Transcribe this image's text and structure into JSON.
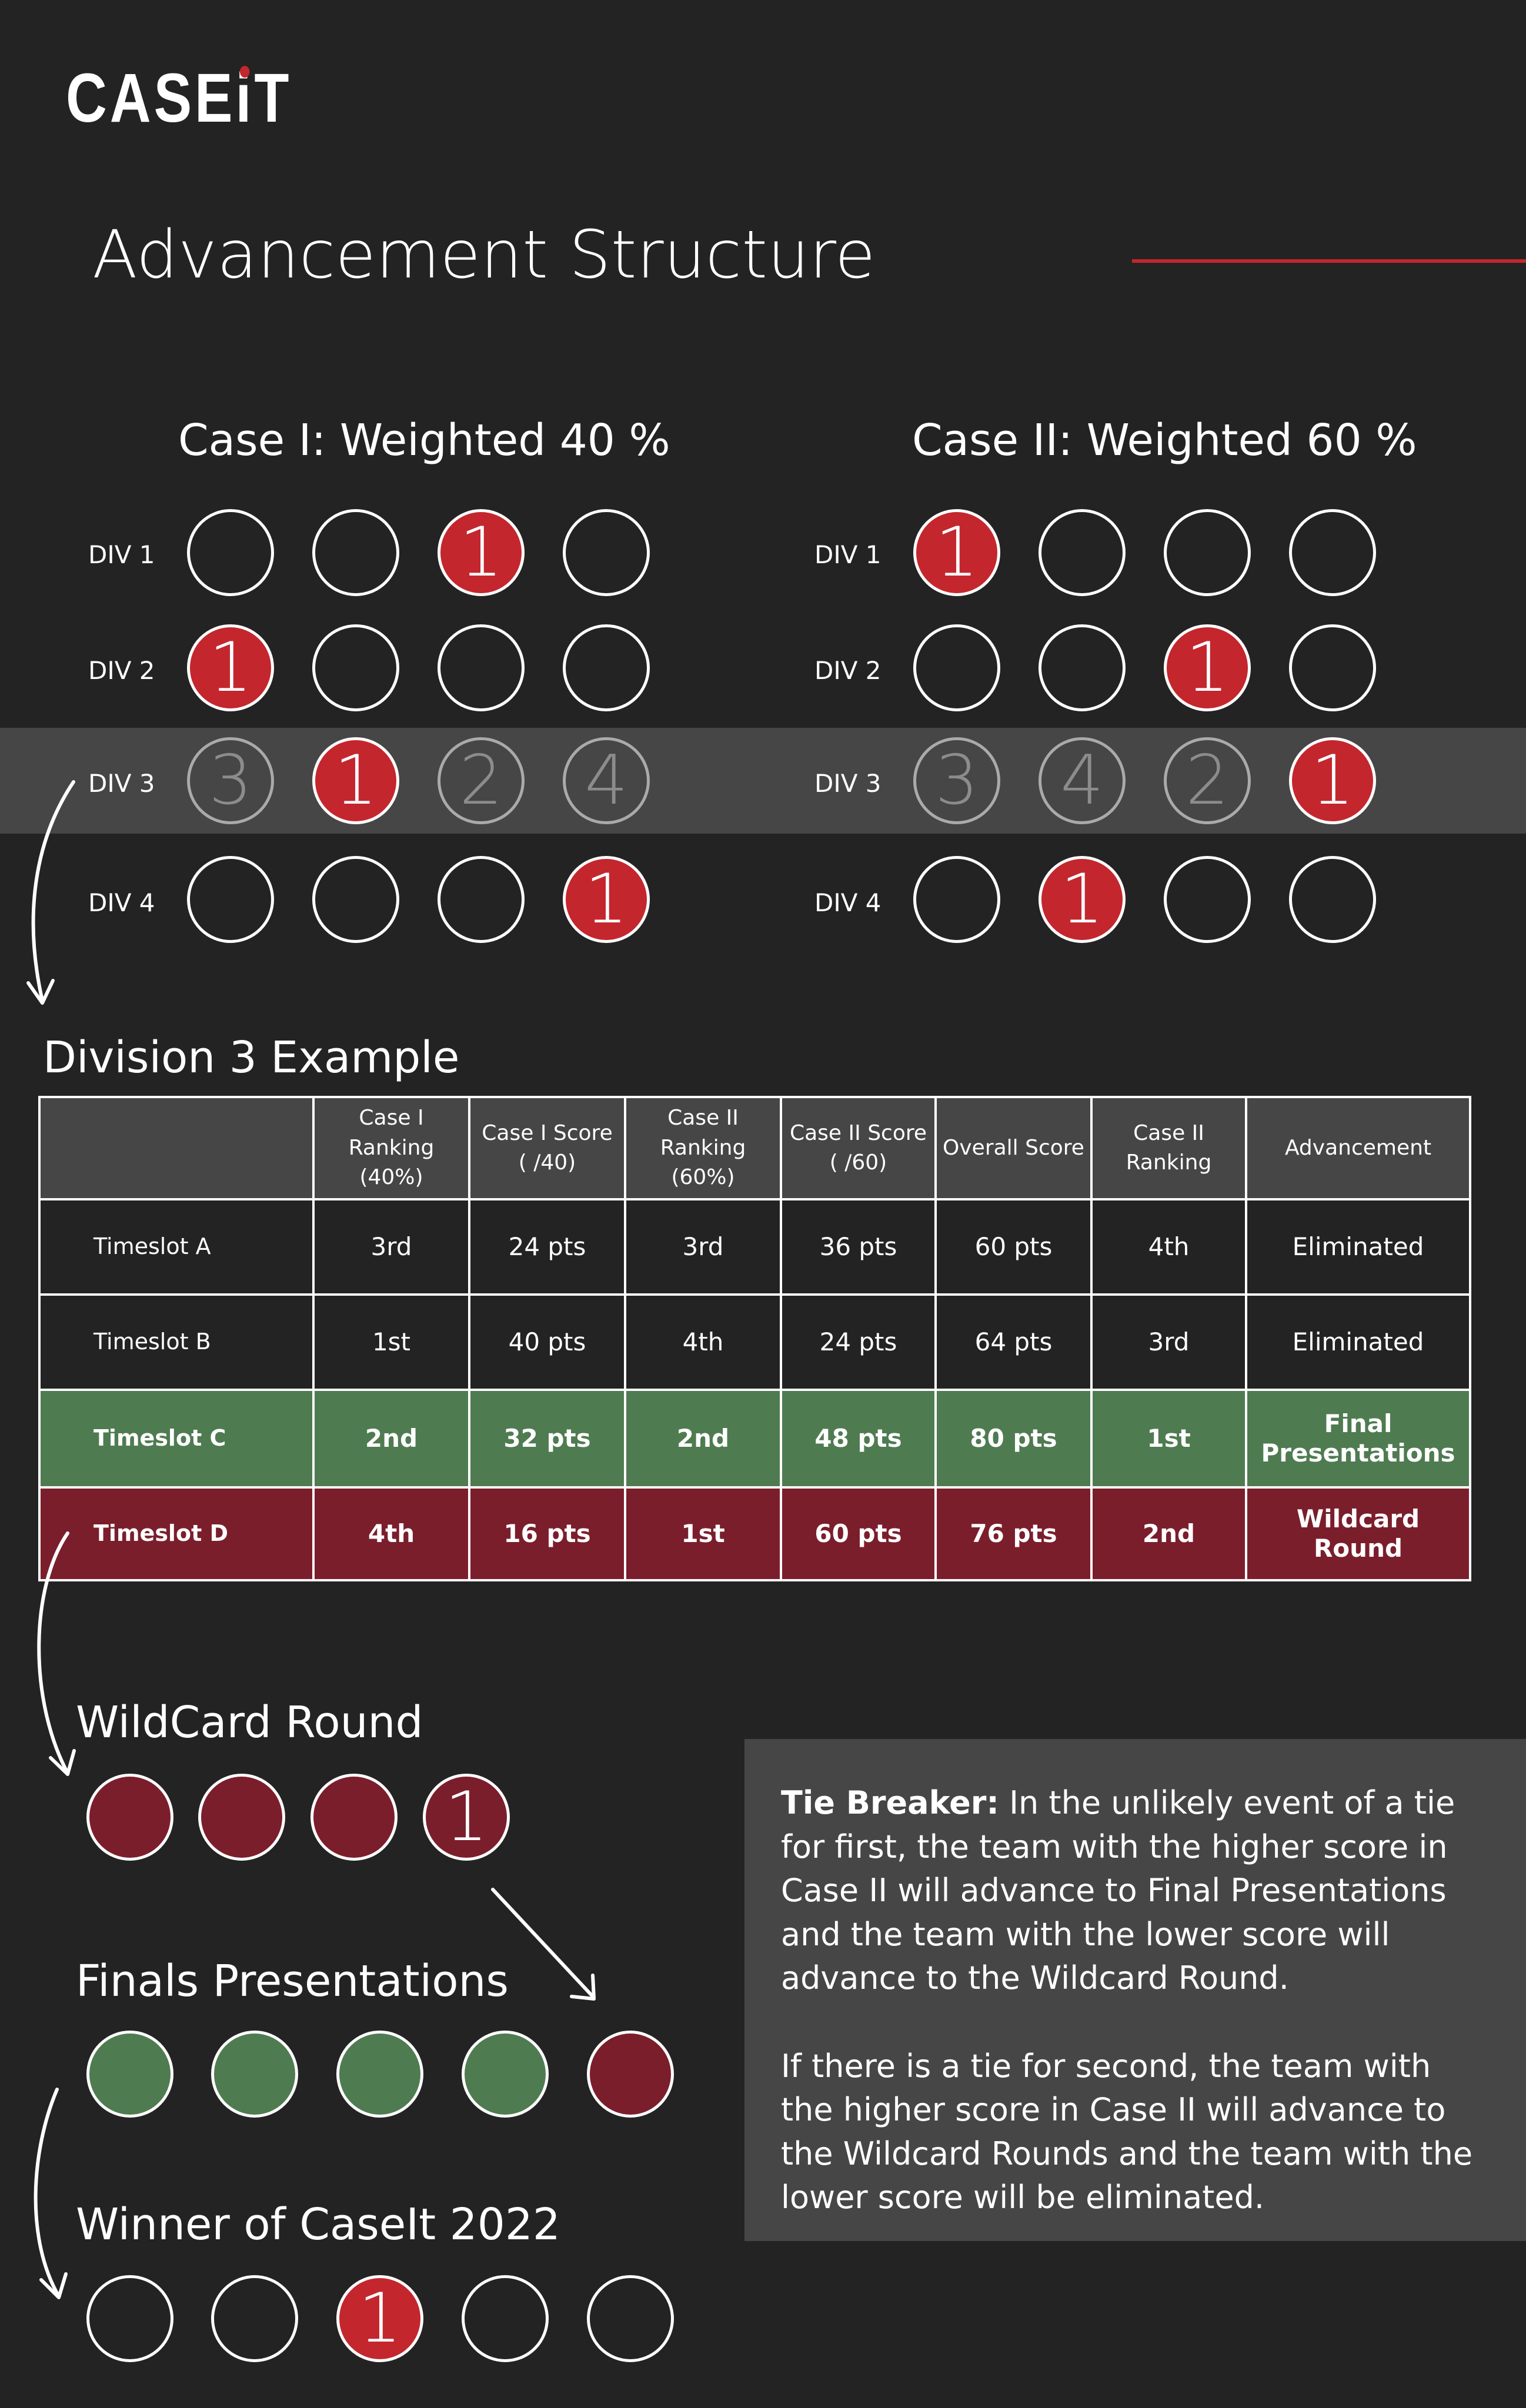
{
  "logo": {
    "text_pre": "CASE",
    "text_i": "i",
    "text_post": "T"
  },
  "title": "Advancement Structure",
  "case1": {
    "heading": "Case I: Weighted 40 %"
  },
  "case2": {
    "heading": "Case II: Weighted 60 %"
  },
  "division_labels": [
    "DIV 1",
    "DIV 2",
    "DIV 3",
    "DIV 4"
  ],
  "case1_grid": [
    [
      "",
      "",
      "1",
      ""
    ],
    [
      "1",
      "",
      "",
      ""
    ],
    [
      "3",
      "1",
      "2",
      "4"
    ],
    [
      "",
      "",
      "",
      "1"
    ]
  ],
  "case2_grid": [
    [
      "1",
      "",
      "",
      ""
    ],
    [
      "",
      "",
      "1",
      ""
    ],
    [
      "3",
      "4",
      "2",
      "1"
    ],
    [
      "",
      "1",
      "",
      ""
    ]
  ],
  "example": {
    "heading": "Division 3 Example",
    "columns": [
      "",
      "Case I Ranking (40%)",
      "Case I Score ( /40)",
      "Case II Ranking (60%)",
      "Case II Score ( /60)",
      "Overall Score",
      "Case II Ranking",
      "Advancement"
    ],
    "rows": [
      {
        "cells": [
          "Timeslot A",
          "3rd",
          "24 pts",
          "3rd",
          "36 pts",
          "60 pts",
          "4th",
          "Eliminated"
        ],
        "status": "eliminated"
      },
      {
        "cells": [
          "Timeslot B",
          "1st",
          "40 pts",
          "4th",
          "24 pts",
          "64 pts",
          "3rd",
          "Eliminated"
        ],
        "status": "eliminated"
      },
      {
        "cells": [
          "Timeslot C",
          "2nd",
          "32 pts",
          "2nd",
          "48 pts",
          "80 pts",
          "1st",
          "Final Presentations"
        ],
        "status": "final"
      },
      {
        "cells": [
          "Timeslot D",
          "4th",
          "16 pts",
          "1st",
          "60 pts",
          "76 pts",
          "2nd",
          "Wildcard Round"
        ],
        "status": "wildcard"
      }
    ]
  },
  "wildcard": {
    "heading": "WildCard Round",
    "circles": [
      "",
      "",
      "",
      "1"
    ]
  },
  "finals": {
    "heading": "Finals Presentations",
    "circles": [
      "",
      "",
      "",
      "",
      ""
    ]
  },
  "winner": {
    "heading": "Winner of CaseIt 2022",
    "circles": [
      "",
      "",
      "1",
      "",
      ""
    ]
  },
  "tie_breaker": {
    "label": "Tie Breaker:",
    "para1": "In the unlikely event of a tie for first, the team with the higher score in Case II will advance to Final Presentations and the team with the lower score will advance to the Wildcard Round.",
    "para2": "If there is a tie for second, the team with the higher score in Case II will advance to the Wildcard Rounds and the team with the lower score will be eliminated."
  },
  "colors": {
    "background": "#242323",
    "accent_red": "#c4262e",
    "wildcard_wine": "#7b1e2c",
    "finals_green": "#4f7b51",
    "panel_grey": "#474646"
  }
}
